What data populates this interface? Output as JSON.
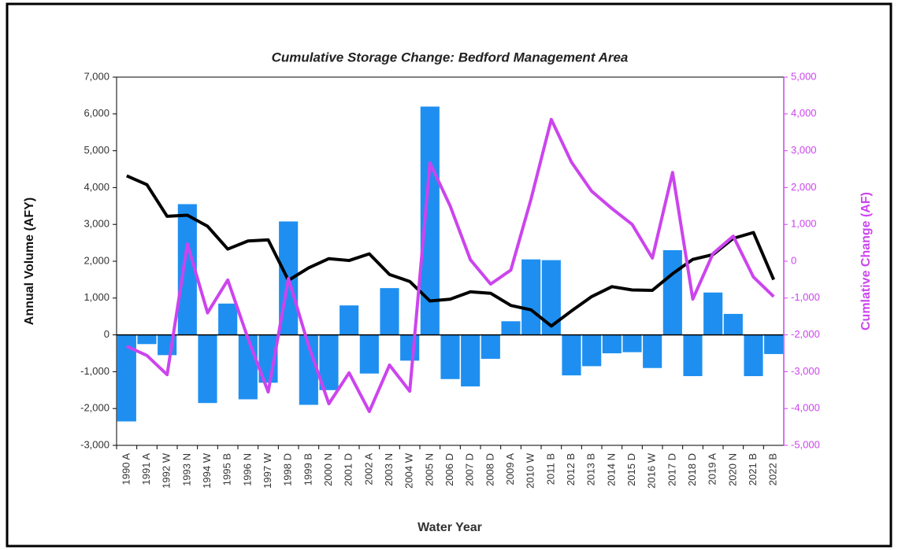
{
  "chart_data": {
    "type": "bar",
    "title": "Cumulative Storage Change:  Bedford Management Area",
    "x_label": "Water Year",
    "y_label": "Annual Volume (AFY)",
    "y2_label": "Cumlative Change (AF)",
    "categories": [
      "1990 A",
      "1991 A",
      "1992 W",
      "1993 N",
      "1994 W",
      "1995 B",
      "1996 N",
      "1997 W",
      "1998 D",
      "1999 B",
      "2000 N",
      "2001 D",
      "2002 A",
      "2003 N",
      "2004 W",
      "2005 N",
      "2006 D",
      "2007 D",
      "2008 D",
      "2009 A",
      "2010 W",
      "2011 B",
      "2012 B",
      "2013 B",
      "2014 N",
      "2015 D",
      "2016 W",
      "2017 D",
      "2018 D",
      "2019 A",
      "2020 N",
      "2021 B",
      "2022 B"
    ],
    "series": [
      {
        "type": "bar",
        "color": "#1e8ff0",
        "values": [
          -2350,
          -250,
          -550,
          3550,
          -1850,
          850,
          -1750,
          -1300,
          3080,
          -1900,
          -1500,
          800,
          -1050,
          1270,
          -700,
          6200,
          -1200,
          -1400,
          -650,
          370,
          2050,
          2030,
          -1100,
          -850,
          -500,
          -470,
          -900,
          2300,
          -1120,
          1150,
          570,
          -1120,
          -520
        ]
      },
      {
        "type": "line",
        "color": "#000000",
        "values": [
          4320,
          4080,
          3220,
          3250,
          2950,
          2330,
          2550,
          2580,
          1480,
          1820,
          2070,
          2020,
          2200,
          1640,
          1450,
          920,
          970,
          1170,
          1130,
          800,
          680,
          240,
          650,
          1040,
          1310,
          1220,
          1210,
          1660,
          2050,
          2180,
          2620,
          2780,
          1500
        ]
      },
      {
        "type": "line",
        "color": "#cc44ee",
        "axis": "y2",
        "values": [
          -2310,
          -2560,
          -3080,
          470,
          -1400,
          -510,
          -2100,
          -3550,
          -470,
          -2300,
          -3870,
          -3030,
          -4080,
          -2820,
          -3530,
          2670,
          1500,
          40,
          -620,
          -240,
          1690,
          3850,
          2690,
          1900,
          1430,
          1000,
          85,
          2410,
          -1030,
          210,
          680,
          -430,
          -960
        ]
      }
    ],
    "ylim": [
      -3000,
      7000
    ],
    "yticks": [
      {
        "value": -3000,
        "label": "-3,000"
      },
      {
        "value": -2000,
        "label": "-2,000"
      },
      {
        "value": -1000,
        "label": "-1,000"
      },
      0,
      {
        "value": 1000,
        "label": "1,000"
      },
      {
        "value": 2000,
        "label": "2,000"
      },
      {
        "value": 3000,
        "label": "3,000"
      },
      {
        "value": 4000,
        "label": "4,000"
      },
      {
        "value": 5000,
        "label": "5,000"
      },
      {
        "value": 6000,
        "label": "6,000"
      },
      {
        "value": 7000,
        "label": "7,000"
      }
    ],
    "y2lim": [
      -5000,
      5000
    ],
    "y2ticks": [
      {
        "value": -5000,
        "label": "-5,000"
      },
      {
        "value": -4000,
        "label": "-4,000"
      },
      {
        "value": -3000,
        "label": "-3,000"
      },
      {
        "value": -2000,
        "label": "-2,000"
      },
      {
        "value": -1000,
        "label": "-1,000"
      },
      0,
      {
        "value": 1000,
        "label": "1,000"
      },
      {
        "value": 2000,
        "label": "2,000"
      },
      {
        "value": 3000,
        "label": "3,000"
      },
      {
        "value": 4000,
        "label": "4,000"
      },
      {
        "value": 5000,
        "label": "5,000"
      }
    ],
    "y2color": "#cc44ee"
  }
}
